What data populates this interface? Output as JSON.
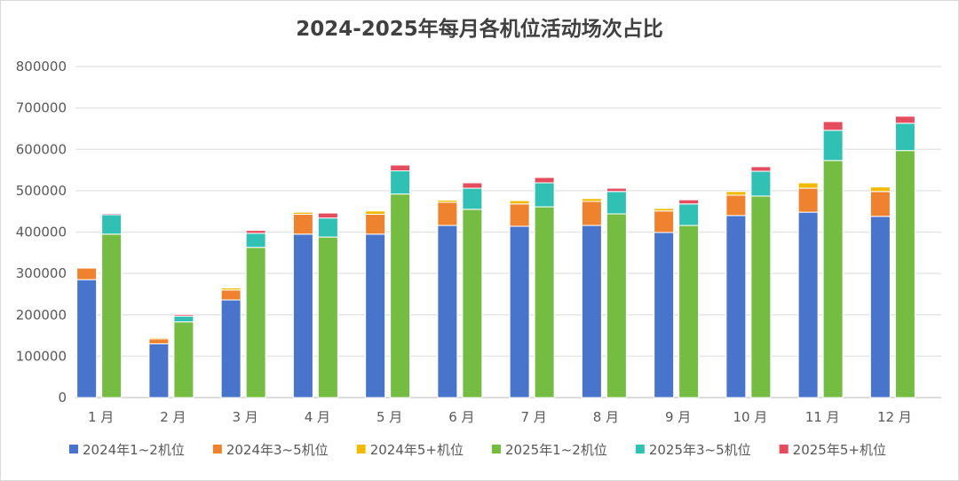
{
  "chart_data": {
    "type": "bar",
    "stacked": true,
    "title": "2024-2025年每月各机位活动场次占比",
    "categories": [
      "1 月",
      "2 月",
      "3 月",
      "4 月",
      "5 月",
      "6 月",
      "7 月",
      "8 月",
      "9 月",
      "10 月",
      "11 月",
      "12 月"
    ],
    "ylim": [
      0,
      800000
    ],
    "yticks": [
      "0",
      "100000",
      "200000",
      "300000",
      "400000",
      "500000",
      "600000",
      "700000",
      "800000"
    ],
    "grid": true,
    "legend_position": "bottom",
    "series": [
      {
        "name": "2024年1~2机位",
        "stack": "2024",
        "color": "#4874cb",
        "values": [
          285000,
          130000,
          236000,
          395000,
          395000,
          416000,
          414000,
          416000,
          399000,
          440000,
          448000,
          438000
        ]
      },
      {
        "name": "2024年3~5机位",
        "stack": "2024",
        "color": "#ee822f",
        "values": [
          28000,
          12000,
          24000,
          48000,
          48000,
          56000,
          54000,
          58000,
          52000,
          49000,
          58000,
          60000
        ]
      },
      {
        "name": "2024年5+机位",
        "stack": "2024",
        "color": "#f2ba02",
        "values": [
          1000,
          3000,
          5000,
          5000,
          8000,
          5000,
          8000,
          7000,
          6000,
          9000,
          13000,
          11000
        ]
      },
      {
        "name": "2025年1~2机位",
        "stack": "2025",
        "color": "#75bd42",
        "values": [
          395000,
          183000,
          363000,
          388000,
          492000,
          455000,
          461000,
          444000,
          416000,
          487000,
          573000,
          597000
        ]
      },
      {
        "name": "2025年3~5机位",
        "stack": "2025",
        "color": "#30c0b4",
        "values": [
          47000,
          14000,
          34000,
          46000,
          56000,
          51000,
          58000,
          54000,
          52000,
          60000,
          73000,
          66000
        ]
      },
      {
        "name": "2025年5+机位",
        "stack": "2025",
        "color": "#e54c5e",
        "values": [
          3000,
          4000,
          7000,
          12000,
          14000,
          13000,
          13000,
          8000,
          10000,
          11000,
          21000,
          17000
        ]
      }
    ]
  }
}
